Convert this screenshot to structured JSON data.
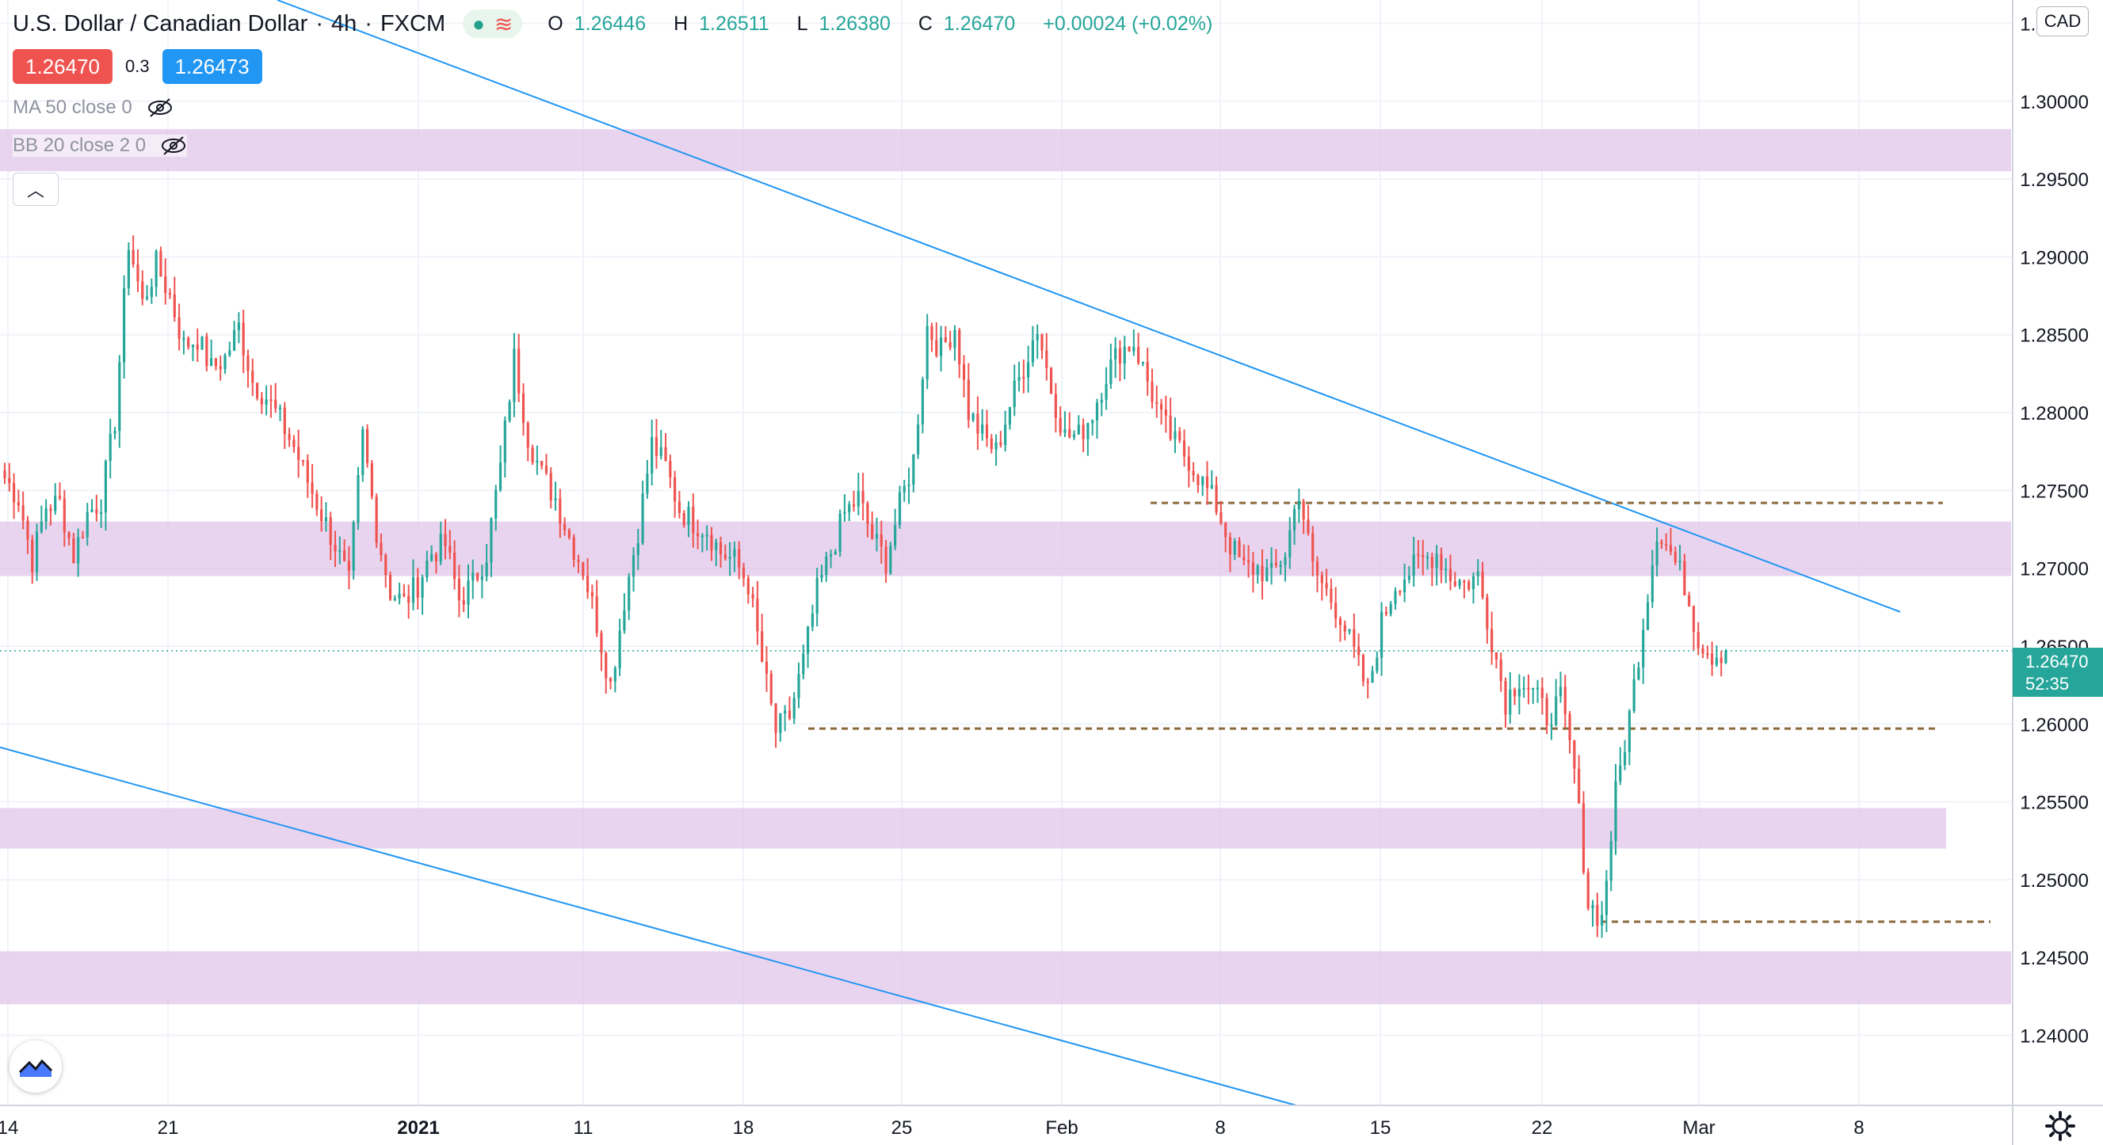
{
  "header": {
    "symbol": "U.S. Dollar / Canadian Dollar",
    "interval": "4h",
    "exchange": "FXCM",
    "ohlc": {
      "o_label": "O",
      "o": "1.26446",
      "h_label": "H",
      "h": "1.26511",
      "l_label": "L",
      "l": "1.26380",
      "c_label": "C",
      "c": "1.26470",
      "change": "+0.00024 (+0.02%)"
    }
  },
  "trade": {
    "sell": "1.26470",
    "spread": "0.3",
    "buy": "1.26473"
  },
  "indicators": [
    {
      "label": "MA 50 close 0"
    },
    {
      "label": "BB 20 close 2 0"
    }
  ],
  "currency": "CAD",
  "last_price": {
    "value": "1.26470",
    "countdown": "52:35"
  },
  "colors": {
    "up": "#26a69a",
    "down": "#ef5350",
    "trendline": "#2196f3",
    "zone": "#e1c6ea",
    "level": "#8b6a3e"
  },
  "icons": [
    "eye-off-icon",
    "chevron-up-icon",
    "tradingview-logo-icon",
    "gear-icon"
  ],
  "chart_data": {
    "type": "candlestick",
    "ylabel": "CAD",
    "ylim": [
      1.2355,
      1.3065
    ],
    "y_ticks": [
      "1.30500",
      "1.30000",
      "1.29500",
      "1.29000",
      "1.28500",
      "1.28000",
      "1.27500",
      "1.27000",
      "1.26500",
      "1.26000",
      "1.25500",
      "1.25000",
      "1.24500",
      "1.24000"
    ],
    "x_ticks": [
      "14",
      "21",
      "2021",
      "11",
      "18",
      "25",
      "Feb",
      "8",
      "15",
      "22",
      "Mar",
      "8"
    ],
    "zones": [
      [
        1.2955,
        1.2982
      ],
      [
        1.2695,
        1.273
      ],
      [
        1.252,
        1.2546
      ],
      [
        1.242,
        1.2454
      ]
    ],
    "levels": [
      1.2742,
      1.2597,
      1.2473
    ],
    "closes": [
      1.2758,
      1.2745,
      1.2705,
      1.274,
      1.2742,
      1.2708,
      1.2735,
      1.2744,
      1.2795,
      1.291,
      1.287,
      1.2895,
      1.2875,
      1.2843,
      1.2848,
      1.2828,
      1.2835,
      1.2855,
      1.282,
      1.281,
      1.2795,
      1.2778,
      1.2756,
      1.2735,
      1.2715,
      1.269,
      1.2785,
      1.2725,
      1.2685,
      1.2678,
      1.269,
      1.271,
      1.2715,
      1.268,
      1.269,
      1.271,
      1.2765,
      1.2835,
      1.2785,
      1.276,
      1.2745,
      1.272,
      1.27,
      1.2665,
      1.2625,
      1.268,
      1.2725,
      1.278,
      1.2765,
      1.2738,
      1.273,
      1.2725,
      1.271,
      1.2705,
      1.269,
      1.264,
      1.2595,
      1.2605,
      1.264,
      1.2685,
      1.271,
      1.2735,
      1.2745,
      1.272,
      1.2705,
      1.274,
      1.277,
      1.2855,
      1.284,
      1.2855,
      1.28,
      1.2785,
      1.2775,
      1.2805,
      1.283,
      1.2855,
      1.2815,
      1.2785,
      1.2785,
      1.28,
      1.2825,
      1.284,
      1.2845,
      1.282,
      1.2795,
      1.278,
      1.277,
      1.2755,
      1.274,
      1.2715,
      1.27,
      1.27,
      1.2695,
      1.271,
      1.275,
      1.27,
      1.2685,
      1.267,
      1.2645,
      1.262,
      1.2665,
      1.269,
      1.2698,
      1.2705,
      1.271,
      1.2695,
      1.269,
      1.2695,
      1.2655,
      1.2615,
      1.263,
      1.262,
      1.2605,
      1.2615,
      1.257,
      1.2485,
      1.2475,
      1.2555,
      1.2605,
      1.2665,
      1.2725,
      1.271,
      1.269,
      1.2655,
      1.2645,
      1.2647
    ]
  }
}
